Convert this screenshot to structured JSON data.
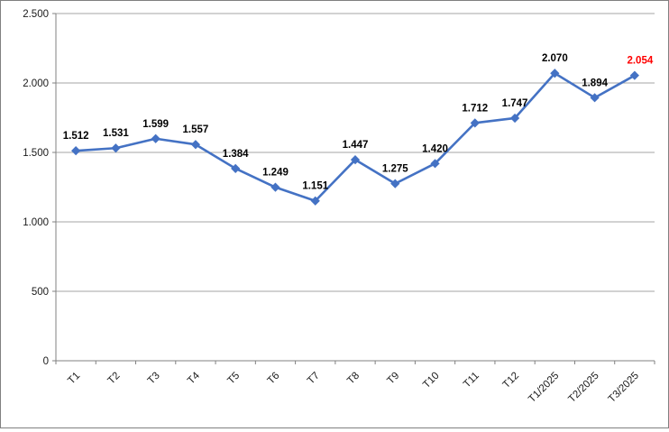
{
  "chart_data": {
    "type": "line",
    "title": "",
    "xlabel": "",
    "ylabel": "",
    "legend": "none",
    "grid": true,
    "categories": [
      "T1",
      "T2",
      "T3",
      "T4",
      "T5",
      "T6",
      "T7",
      "T8",
      "T9",
      "T10",
      "T11",
      "T12",
      "T1/2025",
      "T2/2025",
      "T3/2025"
    ],
    "values": [
      1512,
      1531,
      1599,
      1557,
      1384,
      1249,
      1151,
      1447,
      1275,
      1420,
      1712,
      1747,
      2070,
      1894,
      2054
    ],
    "point_labels": [
      "1.512",
      "1.531",
      "1.599",
      "1.557",
      "1.384",
      "1.249",
      "1.151",
      "1.447",
      "1.275",
      "1.420",
      "1.712",
      "1.747",
      "2.070",
      "1.894",
      "2.054"
    ],
    "ylim": [
      0,
      2500
    ],
    "y_ticks": [
      {
        "value": 0,
        "label": "0"
      },
      {
        "value": 500,
        "label": "500"
      },
      {
        "value": 1000,
        "label": "1.000"
      },
      {
        "value": 1500,
        "label": "1.500"
      },
      {
        "value": 2000,
        "label": "2.000"
      },
      {
        "value": 2500,
        "label": "2.500"
      }
    ],
    "colors": {
      "series": "#4472C4",
      "point_label": "#000000",
      "last_point_label": "#FF0000",
      "gridline": "#A6A6A6",
      "axis": "#808080",
      "tick_label": "#1a1a1a",
      "background": "#FFFFFF",
      "frame_border": "#808080"
    }
  }
}
